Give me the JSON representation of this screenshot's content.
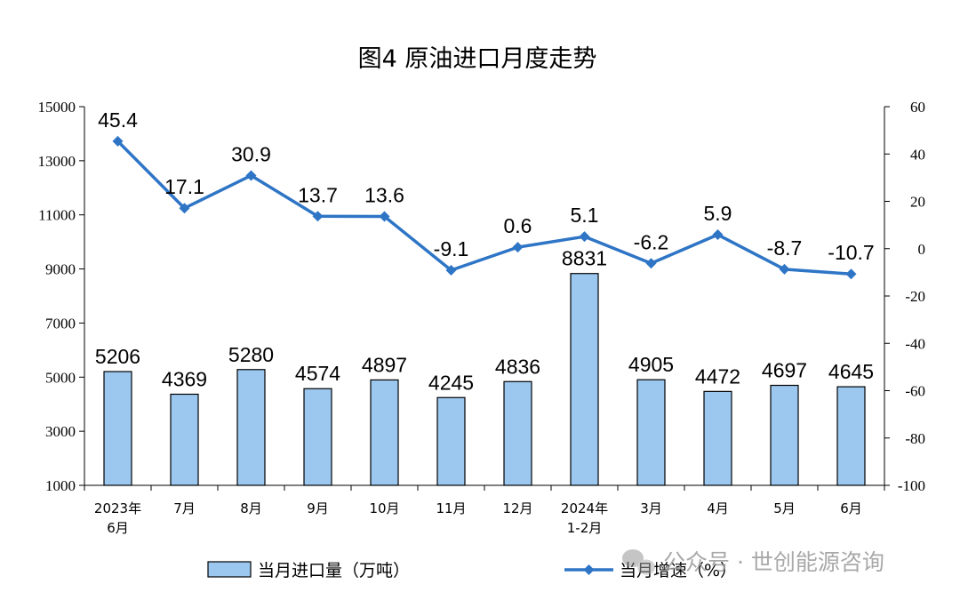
{
  "chart_data": {
    "type": "bar+line",
    "title": "图4  原油进口月度走势",
    "categories": [
      [
        "2023年",
        "6月"
      ],
      [
        "7月"
      ],
      [
        "8月"
      ],
      [
        "9月"
      ],
      [
        "10月"
      ],
      [
        "11月"
      ],
      [
        "12月"
      ],
      [
        "2024年",
        "1-2月"
      ],
      [
        "3月"
      ],
      [
        "4月"
      ],
      [
        "5月"
      ],
      [
        "6月"
      ]
    ],
    "series": [
      {
        "name": "当月进口量（万吨）",
        "type": "bar",
        "axis": "left",
        "color": "#9cc8f0",
        "values": [
          5206,
          4369,
          5280,
          4574,
          4897,
          4245,
          4836,
          8831,
          4905,
          4472,
          4697,
          4645
        ],
        "labels": [
          "5206",
          "4369",
          "5280",
          "4574",
          "4897",
          "4245",
          "4836",
          "8831",
          "4905",
          "4472",
          "4697",
          "4645"
        ]
      },
      {
        "name": "当月增速（%）",
        "type": "line",
        "axis": "right",
        "color": "#2e75c6",
        "values": [
          45.4,
          17.1,
          30.9,
          13.7,
          13.6,
          -9.1,
          0.6,
          5.1,
          -6.2,
          5.9,
          -8.7,
          -10.7
        ],
        "labels": [
          "45.4",
          "17.1",
          "30.9",
          "13.7",
          "13.6",
          "-9.1",
          "0.6",
          "5.1",
          "-6.2",
          "5.9",
          "-8.7",
          "-10.7"
        ]
      }
    ],
    "left_axis": {
      "range": [
        1000,
        15000
      ],
      "ticks": [
        1000,
        3000,
        5000,
        7000,
        9000,
        11000,
        13000,
        15000
      ],
      "tick_labels": [
        "1000",
        "3000",
        "5000",
        "7000",
        "9000",
        "11000",
        "13000",
        "15000"
      ]
    },
    "right_axis": {
      "range": [
        -100,
        60
      ],
      "ticks": [
        -100,
        -80,
        -60,
        -40,
        -20,
        0,
        20,
        40,
        60
      ],
      "tick_labels": [
        "-100",
        "-80",
        "-60",
        "-40",
        "-20",
        "0",
        "20",
        "40",
        "60"
      ]
    },
    "grid": false,
    "legend_position": "bottom"
  },
  "watermark": {
    "text": "公众号 · 世创能源咨询",
    "icon": "wechat-icon"
  }
}
